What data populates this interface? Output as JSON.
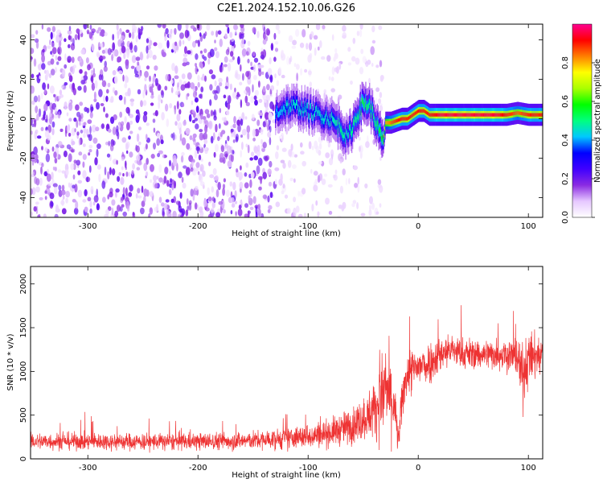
{
  "figure": {
    "title": "C2E1.2024.152.10.06.G26"
  },
  "chart_data": [
    {
      "type": "heatmap",
      "name": "spectrogram",
      "xlabel": "Height of straight line (km)",
      "ylabel": "Frequency (Hz)",
      "xlim": [
        -352,
        113
      ],
      "ylim": [
        -50,
        48
      ],
      "xticks": [
        -300,
        -200,
        -100,
        0,
        100
      ],
      "yticks": [
        -40,
        -20,
        0,
        20,
        40
      ],
      "colorbar": {
        "label": "Normalized spectral amplitude",
        "range": [
          0,
          1
        ],
        "ticks": [
          0.0,
          0.2,
          0.4,
          0.6,
          0.8
        ],
        "tick_labels": [
          "0.0",
          "0.2",
          "0.4",
          "0.6",
          "0.8"
        ],
        "colormap": [
          "#ffffff",
          "#e6c8ff",
          "#8a2be2",
          "#4000ff",
          "#0000ff",
          "#00c8ff",
          "#00ff80",
          "#00ff00",
          "#aaff00",
          "#ffff00",
          "#ff8000",
          "#ff0000",
          "#ff0090"
        ]
      },
      "regions": [
        {
          "x_range": [
            -352,
            -130
          ],
          "frequency_range": [
            -50,
            48
          ],
          "amplitude": 0.1,
          "description": "broadband noise"
        },
        {
          "x_range": [
            -130,
            -32
          ],
          "frequency_range": [
            -50,
            48
          ],
          "amplitude": 0.05,
          "description": "sparse noise"
        }
      ],
      "ridge": {
        "x": [
          -130,
          -120,
          -110,
          -100,
          -90,
          -80,
          -70,
          -65,
          -60,
          -55,
          -50,
          -45,
          -40,
          -35,
          -32,
          -30,
          -25,
          -20,
          -15,
          -10,
          -5,
          0,
          5,
          10,
          20,
          40,
          60,
          70,
          80,
          90,
          100,
          113
        ],
        "frequency": [
          3,
          6,
          6,
          4,
          2,
          0,
          -5,
          -10,
          -4,
          3,
          8,
          7,
          0,
          -8,
          -12,
          -2,
          -2,
          -1,
          0,
          0,
          2,
          4,
          4,
          2,
          2,
          2,
          2,
          2,
          2,
          3,
          2,
          2
        ],
        "amplitude": [
          0.4,
          0.45,
          0.45,
          0.45,
          0.45,
          0.45,
          0.5,
          0.45,
          0.5,
          0.5,
          0.55,
          0.5,
          0.5,
          0.55,
          0.6,
          0.8,
          0.85,
          0.9,
          0.9,
          0.9,
          0.9,
          0.9,
          0.9,
          0.9,
          0.95,
          0.95,
          0.95,
          0.95,
          0.9,
          0.85,
          0.9,
          0.9
        ]
      }
    },
    {
      "type": "line",
      "name": "snr",
      "xlabel": "Height of straight line (km)",
      "ylabel": "SNR (10 * v/v)",
      "xlim": [
        -352,
        113
      ],
      "ylim": [
        0,
        2200
      ],
      "xticks": [
        -300,
        -200,
        -100,
        0,
        100
      ],
      "yticks": [
        0,
        500,
        1000,
        1500,
        2000
      ],
      "color": "#ee3333",
      "envelope": {
        "x": [
          -352,
          -300,
          -250,
          -200,
          -150,
          -120,
          -100,
          -80,
          -60,
          -45,
          -35,
          -30,
          -25,
          -22,
          -18,
          -15,
          -12,
          -8,
          -5,
          0,
          10,
          20,
          30,
          40,
          60,
          80,
          90,
          95,
          100,
          113
        ],
        "mean": [
          200,
          200,
          195,
          200,
          210,
          230,
          260,
          300,
          380,
          500,
          650,
          800,
          700,
          600,
          200,
          600,
          900,
          1000,
          1000,
          1050,
          1100,
          1200,
          1250,
          1200,
          1200,
          1200,
          1150,
          950,
          1150,
          1200
        ],
        "spread": [
          80,
          80,
          80,
          80,
          85,
          100,
          110,
          130,
          170,
          220,
          320,
          450,
          400,
          300,
          120,
          220,
          200,
          220,
          220,
          200,
          200,
          170,
          150,
          150,
          140,
          160,
          200,
          300,
          250,
          180
        ]
      }
    }
  ]
}
